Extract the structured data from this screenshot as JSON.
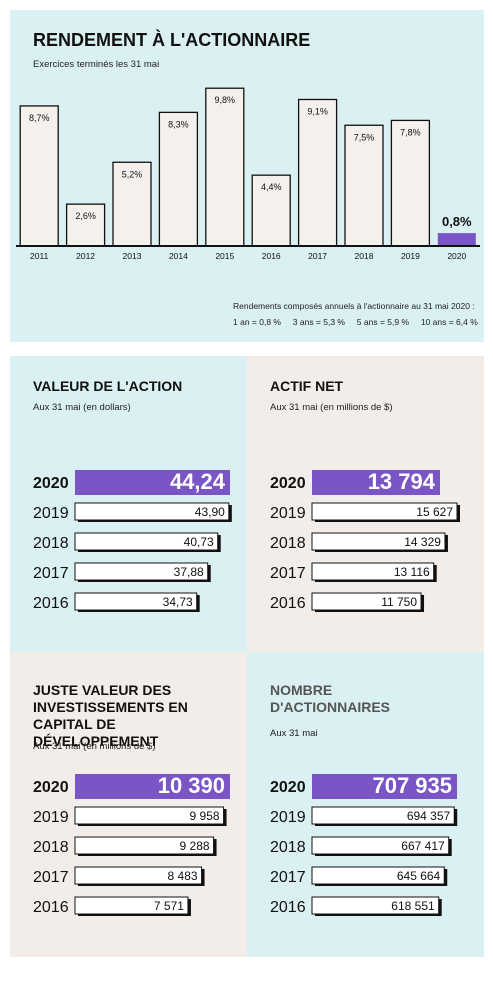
{
  "shareholder_return": {
    "title": "RENDEMENT À L'ACTIONNAIRE",
    "subtitle": "Exercices terminés les 31 mai",
    "note_line1": "Rendements composés annuels à l'actionnaire au 31 mai 2020 :",
    "note_line2": "1 an = 0,8 %     3 ans = 5,3 %     5 ans = 5,9 %     10 ans = 6,4 %"
  },
  "colors": {
    "top_background": "#daf0f2",
    "quad_cyan": "#daf0f2",
    "quad_beige": "#f2ede8",
    "highlight": "#7a55c6",
    "bar_fill": "#f4f0eb"
  },
  "chart_data": [
    {
      "type": "bar",
      "title": "RENDEMENT À L'ACTIONNAIRE",
      "subtitle": "Exercices terminés les 31 mai",
      "categories": [
        "2011",
        "2012",
        "2013",
        "2014",
        "2015",
        "2016",
        "2017",
        "2018",
        "2019",
        "2020"
      ],
      "values": [
        8.7,
        2.6,
        5.2,
        8.3,
        9.8,
        4.4,
        9.1,
        7.5,
        7.8,
        0.8
      ],
      "labels": [
        "8,7%",
        "2,6%",
        "5,2%",
        "8,3%",
        "9,8%",
        "4,4%",
        "9,1%",
        "7,5%",
        "7,8%",
        "0,8%"
      ],
      "highlight_index": 9,
      "ylim": [
        0,
        10
      ]
    },
    {
      "type": "bar",
      "orientation": "horizontal",
      "title": "VALEUR DE L'ACTION",
      "subtitle": "Aux 31 mai (en dollars)",
      "categories": [
        "2020",
        "2019",
        "2018",
        "2017",
        "2016"
      ],
      "values": [
        44.24,
        43.9,
        40.73,
        37.88,
        34.73
      ],
      "labels": [
        "44,24",
        "43,90",
        "40,73",
        "37,88",
        "34,73"
      ],
      "highlight_index": 0
    },
    {
      "type": "bar",
      "orientation": "horizontal",
      "title": "ACTIF NET",
      "subtitle": "Aux 31 mai (en millions de $)",
      "categories": [
        "2020",
        "2019",
        "2018",
        "2017",
        "2016"
      ],
      "values": [
        13794,
        15627,
        14329,
        13116,
        11750
      ],
      "labels": [
        "13 794",
        "15 627",
        "14 329",
        "13 116",
        "11 750"
      ],
      "highlight_index": 0
    },
    {
      "type": "bar",
      "orientation": "horizontal",
      "title": "JUSTE VALEUR DES INVESTISSEMENTS EN CAPITAL DE DÉVELOPPEMENT",
      "subtitle": "Aux 31 mai (en millions de $)",
      "categories": [
        "2020",
        "2019",
        "2018",
        "2017",
        "2016"
      ],
      "values": [
        10390,
        9958,
        9288,
        8483,
        7571
      ],
      "labels": [
        "10 390",
        "9 958",
        "9 288",
        "8 483",
        "7 571"
      ],
      "highlight_index": 0
    },
    {
      "type": "bar",
      "orientation": "horizontal",
      "title": "NOMBRE D'ACTIONNAIRES",
      "subtitle": "Aux 31 mai",
      "categories": [
        "2020",
        "2019",
        "2018",
        "2017",
        "2016"
      ],
      "values": [
        707935,
        694357,
        667417,
        645664,
        618551
      ],
      "labels": [
        "707 935",
        "694 357",
        "667 417",
        "645 664",
        "618 551"
      ],
      "highlight_index": 0
    }
  ]
}
